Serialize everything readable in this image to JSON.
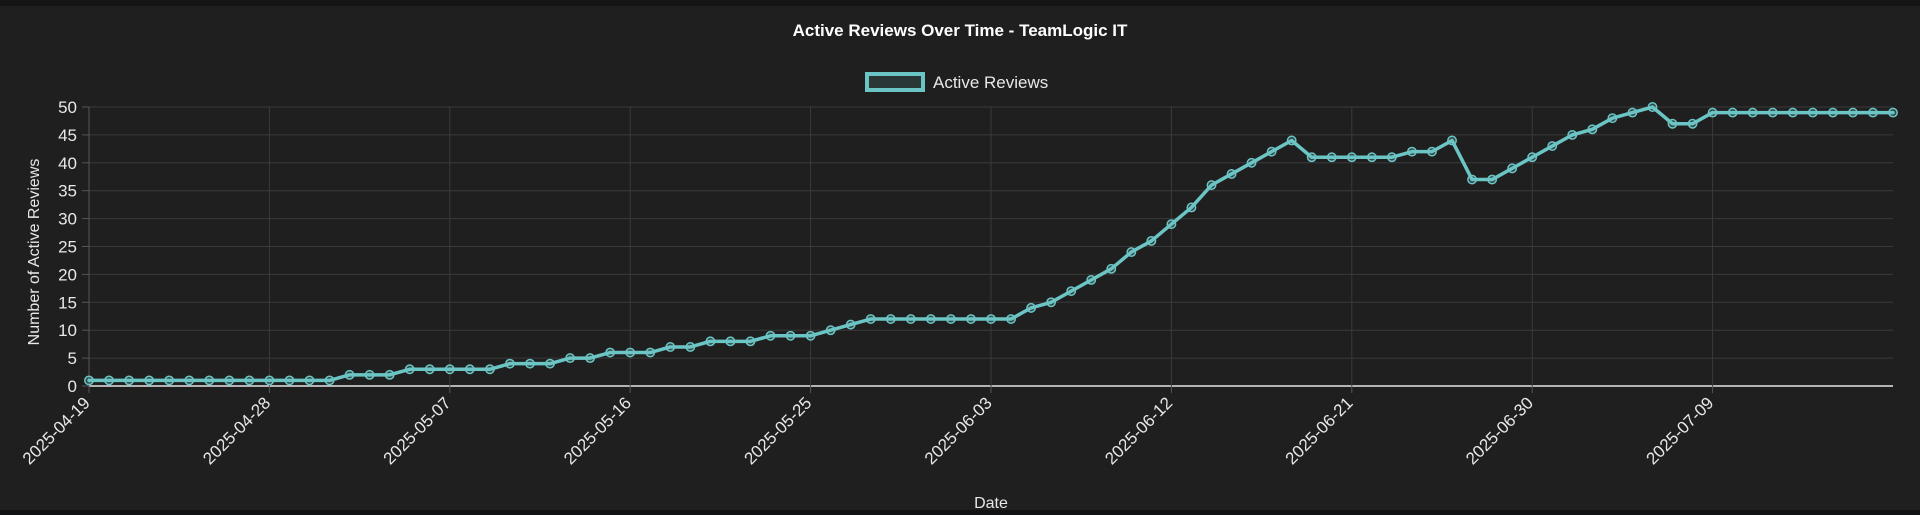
{
  "chart_data": {
    "type": "line",
    "title": "Active Reviews Over Time - TeamLogic IT",
    "xlabel": "Date",
    "ylabel": "Number of Active Reviews",
    "ylim": [
      0,
      50
    ],
    "yticks": [
      "0",
      "5",
      "10",
      "15",
      "20",
      "25",
      "30",
      "35",
      "40",
      "45",
      "50"
    ],
    "xlim": [
      "2025-04-19",
      "2025-07-18"
    ],
    "xticks": [
      "2025-04-19",
      "2025-04-28",
      "2025-05-07",
      "2025-05-16",
      "2025-05-25",
      "2025-06-03",
      "2025-06-12",
      "2025-06-21",
      "2025-06-30",
      "2025-07-09"
    ],
    "grid": true,
    "legend_position": "top-center",
    "series": [
      {
        "name": "Active Reviews",
        "color": "#6cc5c5",
        "points": [
          [
            "2025-04-19",
            1
          ],
          [
            "2025-04-20",
            1
          ],
          [
            "2025-04-21",
            1
          ],
          [
            "2025-04-22",
            1
          ],
          [
            "2025-04-23",
            1
          ],
          [
            "2025-04-24",
            1
          ],
          [
            "2025-04-25",
            1
          ],
          [
            "2025-04-26",
            1
          ],
          [
            "2025-04-27",
            1
          ],
          [
            "2025-04-28",
            1
          ],
          [
            "2025-04-29",
            1
          ],
          [
            "2025-04-30",
            1
          ],
          [
            "2025-05-01",
            1
          ],
          [
            "2025-05-02",
            2
          ],
          [
            "2025-05-03",
            2
          ],
          [
            "2025-05-04",
            2
          ],
          [
            "2025-05-05",
            3
          ],
          [
            "2025-05-06",
            3
          ],
          [
            "2025-05-07",
            3
          ],
          [
            "2025-05-08",
            3
          ],
          [
            "2025-05-09",
            3
          ],
          [
            "2025-05-10",
            4
          ],
          [
            "2025-05-11",
            4
          ],
          [
            "2025-05-12",
            4
          ],
          [
            "2025-05-13",
            5
          ],
          [
            "2025-05-14",
            5
          ],
          [
            "2025-05-15",
            6
          ],
          [
            "2025-05-16",
            6
          ],
          [
            "2025-05-17",
            6
          ],
          [
            "2025-05-18",
            7
          ],
          [
            "2025-05-19",
            7
          ],
          [
            "2025-05-20",
            8
          ],
          [
            "2025-05-21",
            8
          ],
          [
            "2025-05-22",
            8
          ],
          [
            "2025-05-23",
            9
          ],
          [
            "2025-05-24",
            9
          ],
          [
            "2025-05-25",
            9
          ],
          [
            "2025-05-26",
            10
          ],
          [
            "2025-05-27",
            11
          ],
          [
            "2025-05-28",
            12
          ],
          [
            "2025-05-29",
            12
          ],
          [
            "2025-05-30",
            12
          ],
          [
            "2025-05-31",
            12
          ],
          [
            "2025-06-01",
            12
          ],
          [
            "2025-06-02",
            12
          ],
          [
            "2025-06-03",
            12
          ],
          [
            "2025-06-04",
            12
          ],
          [
            "2025-06-05",
            14
          ],
          [
            "2025-06-06",
            15
          ],
          [
            "2025-06-07",
            17
          ],
          [
            "2025-06-08",
            19
          ],
          [
            "2025-06-09",
            21
          ],
          [
            "2025-06-10",
            24
          ],
          [
            "2025-06-11",
            26
          ],
          [
            "2025-06-12",
            29
          ],
          [
            "2025-06-13",
            32
          ],
          [
            "2025-06-14",
            36
          ],
          [
            "2025-06-15",
            38
          ],
          [
            "2025-06-16",
            40
          ],
          [
            "2025-06-17",
            42
          ],
          [
            "2025-06-18",
            44
          ],
          [
            "2025-06-19",
            41
          ],
          [
            "2025-06-20",
            41
          ],
          [
            "2025-06-21",
            41
          ],
          [
            "2025-06-22",
            41
          ],
          [
            "2025-06-23",
            41
          ],
          [
            "2025-06-24",
            42
          ],
          [
            "2025-06-25",
            42
          ],
          [
            "2025-06-26",
            44
          ],
          [
            "2025-06-27",
            37
          ],
          [
            "2025-06-28",
            37
          ],
          [
            "2025-06-29",
            39
          ],
          [
            "2025-06-30",
            41
          ],
          [
            "2025-07-01",
            43
          ],
          [
            "2025-07-02",
            45
          ],
          [
            "2025-07-03",
            46
          ],
          [
            "2025-07-04",
            48
          ],
          [
            "2025-07-05",
            49
          ],
          [
            "2025-07-06",
            50
          ],
          [
            "2025-07-07",
            47
          ],
          [
            "2025-07-08",
            47
          ],
          [
            "2025-07-09",
            49
          ],
          [
            "2025-07-10",
            49
          ],
          [
            "2025-07-11",
            49
          ],
          [
            "2025-07-12",
            49
          ],
          [
            "2025-07-13",
            49
          ],
          [
            "2025-07-14",
            49
          ],
          [
            "2025-07-15",
            49
          ],
          [
            "2025-07-16",
            49
          ],
          [
            "2025-07-17",
            49
          ],
          [
            "2025-07-18",
            49
          ]
        ]
      }
    ]
  }
}
